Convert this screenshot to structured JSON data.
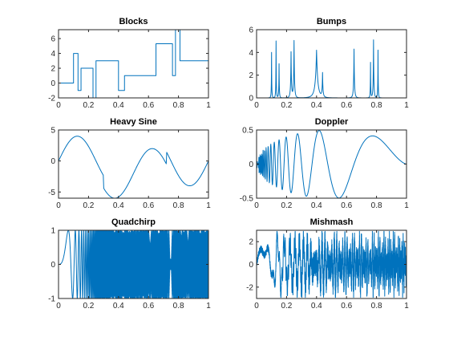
{
  "figure": {
    "background": "#ffffff",
    "line_color": "#0072bd",
    "axis_color": "#262626"
  },
  "chart_data": [
    {
      "id": "blocks",
      "type": "line",
      "title": "Blocks",
      "xlim": [
        0,
        1
      ],
      "ylim": [
        -2,
        7.2
      ],
      "xticks": [
        0,
        0.2,
        0.4,
        0.6,
        0.8,
        1
      ],
      "xtick_labels": [
        "0",
        "0.2",
        "0.4",
        "0.6",
        "0.8",
        "1"
      ],
      "yticks": [
        -2,
        0,
        2,
        4,
        6
      ],
      "ytick_labels": [
        "-2",
        "0",
        "2",
        "4",
        "6"
      ],
      "series": [
        {
          "x": [
            0,
            0.1,
            0.1,
            0.13,
            0.13,
            0.15,
            0.15,
            0.23,
            0.23,
            0.25,
            0.25,
            0.4,
            0.4,
            0.44,
            0.44,
            0.65,
            0.65,
            0.76,
            0.76,
            0.78,
            0.78,
            0.81,
            0.81,
            1
          ],
          "y": [
            0,
            0,
            4,
            4,
            -1,
            -1,
            2,
            2,
            -2.2,
            -2.2,
            3,
            3,
            -1,
            -1,
            1,
            1,
            5.3,
            5.3,
            1,
            1,
            7.2,
            7.2,
            3,
            3
          ]
        }
      ]
    },
    {
      "id": "bumps",
      "type": "line",
      "title": "Bumps",
      "xlim": [
        0,
        1
      ],
      "ylim": [
        0,
        6
      ],
      "xticks": [
        0,
        0.2,
        0.4,
        0.6,
        0.8,
        1
      ],
      "xtick_labels": [
        "0",
        "0.2",
        "0.4",
        "0.6",
        "0.8",
        "1"
      ],
      "yticks": [
        0,
        2,
        4,
        6
      ],
      "ytick_labels": [
        "0",
        "2",
        "4",
        "6"
      ],
      "series": [
        {
          "func": "bumps",
          "t": [
            0.1,
            0.13,
            0.15,
            0.23,
            0.25,
            0.4,
            0.44,
            0.65,
            0.76,
            0.78,
            0.81
          ],
          "h": [
            4,
            5,
            3,
            4,
            5,
            4.2,
            2.1,
            4.3,
            3.1,
            5.1,
            4.2
          ],
          "w": [
            0.005,
            0.005,
            0.006,
            0.01,
            0.01,
            0.03,
            0.01,
            0.01,
            0.005,
            0.008,
            0.005
          ]
        }
      ]
    },
    {
      "id": "heavy-sine",
      "type": "line",
      "title": "Heavy Sine",
      "xlim": [
        0,
        1
      ],
      "ylim": [
        -6,
        5
      ],
      "xticks": [
        0,
        0.2,
        0.4,
        0.6,
        0.8,
        1
      ],
      "xtick_labels": [
        "0",
        "0.2",
        "0.4",
        "0.6",
        "0.8",
        "1"
      ],
      "yticks": [
        -5,
        0,
        5
      ],
      "ytick_labels": [
        "-5",
        "0",
        "5"
      ],
      "series": [
        {
          "func": "heavysine"
        }
      ]
    },
    {
      "id": "doppler",
      "type": "line",
      "title": "Doppler",
      "xlim": [
        0,
        1
      ],
      "ylim": [
        -0.5,
        0.5
      ],
      "xticks": [
        0,
        0.2,
        0.4,
        0.6,
        0.8,
        1
      ],
      "xtick_labels": [
        "0",
        "0.2",
        "0.4",
        "0.6",
        "0.8",
        "1"
      ],
      "yticks": [
        -0.5,
        0,
        0.5
      ],
      "ytick_labels": [
        "-0.5",
        "0",
        "0.5"
      ],
      "series": [
        {
          "func": "doppler"
        }
      ]
    },
    {
      "id": "quadchirp",
      "type": "line",
      "title": "Quadchirp",
      "xlim": [
        0,
        1
      ],
      "ylim": [
        -1,
        1
      ],
      "xticks": [
        0,
        0.2,
        0.4,
        0.6,
        0.8,
        1
      ],
      "xtick_labels": [
        "0",
        "0.2",
        "0.4",
        "0.6",
        "0.8",
        "1"
      ],
      "yticks": [
        -1,
        0,
        1
      ],
      "ytick_labels": [
        "-1",
        "0",
        "1"
      ],
      "series": [
        {
          "func": "quadchirp"
        }
      ]
    },
    {
      "id": "mishmash",
      "type": "line",
      "title": "Mishmash",
      "xlim": [
        0,
        1
      ],
      "ylim": [
        -3,
        3
      ],
      "xticks": [
        0,
        0.2,
        0.4,
        0.6,
        0.8,
        1
      ],
      "xtick_labels": [
        "0",
        "0.2",
        "0.4",
        "0.6",
        "0.8",
        "1"
      ],
      "yticks": [
        -2,
        0,
        2
      ],
      "ytick_labels": [
        "-2",
        "0",
        "2"
      ],
      "series": [
        {
          "func": "mishmash"
        }
      ]
    }
  ]
}
